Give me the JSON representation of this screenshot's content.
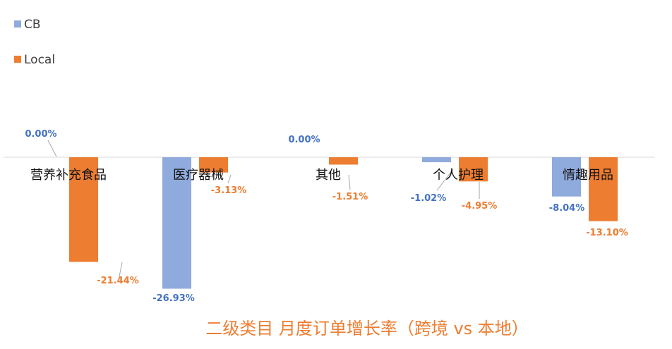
{
  "chart_data": {
    "type": "bar",
    "title": "二级类目 月度订单增长率（跨境 vs 本地）",
    "categories": [
      "营养补充食品",
      "医疗器械",
      "其他",
      "个人护理",
      "情趣用品"
    ],
    "series": [
      {
        "name": "CB",
        "color": "#8FAADC",
        "label_color": "#4472C4",
        "values": [
          0.0,
          -26.93,
          0.0,
          -1.02,
          -8.04
        ],
        "labels": [
          "0.00%",
          "-26.93%",
          "0.00%",
          "-1.02%",
          "-8.04%"
        ]
      },
      {
        "name": "Local",
        "color": "#ED7D31",
        "label_color": "#ED7D31",
        "values": [
          -21.44,
          -3.13,
          -1.51,
          -4.95,
          -13.1
        ],
        "labels": [
          "-21.44%",
          "-3.13%",
          "-1.51%",
          "-4.95%",
          "-13.10%"
        ]
      }
    ],
    "legend_position": "top-left",
    "axis_color": "#D9D9D9",
    "grid": false
  }
}
